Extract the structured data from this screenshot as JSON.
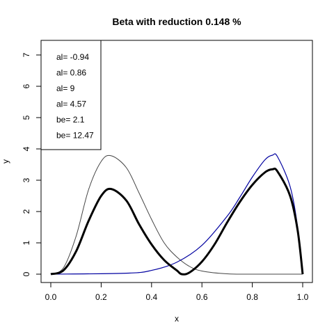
{
  "chart_data": {
    "type": "line",
    "title": "Beta with reduction 0.148 %",
    "xlabel": "x",
    "ylabel": "y",
    "xlim": [
      0,
      1
    ],
    "ylim": [
      0,
      7
    ],
    "x_ticks": [
      "0.0",
      "0.2",
      "0.4",
      "0.6",
      "0.8",
      "1.0"
    ],
    "y_ticks": [
      "0",
      "1",
      "2",
      "3",
      "4",
      "5",
      "6",
      "7"
    ],
    "legend": {
      "placement": "top-left",
      "entries": [
        "al= -0.94",
        "al= 0.86",
        "al= 9",
        "al= 4.57",
        "be= 2.1",
        "be= 12.47"
      ]
    },
    "series": [
      {
        "color": "#444444",
        "x": [
          0.0,
          0.05,
          0.1,
          0.15,
          0.2,
          0.24,
          0.3,
          0.35,
          0.4,
          0.45,
          0.5,
          0.55,
          0.6,
          0.7,
          0.8,
          1.0
        ],
        "y": [
          0.0,
          0.2,
          1.2,
          2.7,
          3.6,
          3.78,
          3.4,
          2.6,
          1.75,
          1.0,
          0.55,
          0.25,
          0.1,
          0.01,
          0.0,
          0.0
        ]
      },
      {
        "color": "#0000a0",
        "x": [
          0.0,
          0.3,
          0.4,
          0.5,
          0.6,
          0.7,
          0.75,
          0.8,
          0.85,
          0.88,
          0.9,
          0.95,
          0.98,
          1.0
        ],
        "y": [
          0.0,
          0.03,
          0.12,
          0.38,
          0.92,
          1.85,
          2.45,
          3.1,
          3.65,
          3.8,
          3.75,
          2.8,
          1.5,
          0.0
        ]
      },
      {
        "color": "#000000",
        "x": [
          0.0,
          0.05,
          0.1,
          0.15,
          0.2,
          0.24,
          0.3,
          0.35,
          0.4,
          0.45,
          0.5,
          0.52,
          0.55,
          0.6,
          0.65,
          0.7,
          0.75,
          0.8,
          0.85,
          0.88,
          0.9,
          0.95,
          0.98,
          1.0
        ],
        "y": [
          0.0,
          0.12,
          0.72,
          1.7,
          2.5,
          2.72,
          2.35,
          1.6,
          0.95,
          0.45,
          0.12,
          0.0,
          0.05,
          0.4,
          0.95,
          1.65,
          2.3,
          2.85,
          3.25,
          3.35,
          3.28,
          2.5,
          1.4,
          0.0
        ]
      }
    ]
  }
}
